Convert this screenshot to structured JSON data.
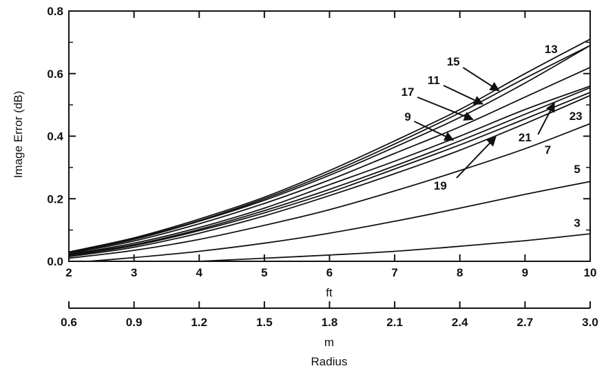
{
  "chart_data": {
    "type": "line",
    "ylabel": "Image Error (dB)",
    "ylim": [
      0,
      0.8
    ],
    "yticks": [
      "0.0",
      "0.2",
      "0.4",
      "0.6",
      "0.8"
    ],
    "x_axis_ft": {
      "label": "ft",
      "range": [
        2,
        10
      ],
      "ticks": [
        "2",
        "3",
        "4",
        "5",
        "6",
        "7",
        "8",
        "9",
        "10"
      ]
    },
    "x_axis_m": {
      "label": "m",
      "range": [
        0.6,
        3.0
      ],
      "ticks": [
        "0.6",
        "0.9",
        "1.2",
        "1.5",
        "1.8",
        "2.1",
        "2.4",
        "2.7",
        "3.0"
      ]
    },
    "xlabel": "Radius",
    "x": [
      2,
      3,
      4,
      5,
      6,
      7,
      8,
      9,
      10
    ],
    "series": [
      {
        "name": "3",
        "values": [
          -0.015,
          -0.008,
          0.0,
          0.01,
          0.02,
          0.032,
          0.048,
          0.066,
          0.088
        ]
      },
      {
        "name": "5",
        "values": [
          -0.005,
          0.012,
          0.032,
          0.058,
          0.09,
          0.128,
          0.17,
          0.214,
          0.255
        ]
      },
      {
        "name": "7",
        "values": [
          0.01,
          0.035,
          0.07,
          0.115,
          0.165,
          0.225,
          0.29,
          0.36,
          0.44
        ]
      },
      {
        "name": "9",
        "values": [
          0.022,
          0.058,
          0.108,
          0.17,
          0.245,
          0.32,
          0.4,
          0.485,
          0.56
        ]
      },
      {
        "name": "11",
        "values": [
          0.028,
          0.07,
          0.128,
          0.195,
          0.275,
          0.365,
          0.46,
          0.57,
          0.69
        ]
      },
      {
        "name": "13",
        "values": [
          0.03,
          0.075,
          0.135,
          0.205,
          0.29,
          0.385,
          0.485,
          0.6,
          0.71
        ]
      },
      {
        "name": "15",
        "values": [
          0.028,
          0.072,
          0.13,
          0.2,
          0.282,
          0.375,
          0.475,
          0.585,
          0.69
        ]
      },
      {
        "name": "17",
        "values": [
          0.025,
          0.065,
          0.12,
          0.185,
          0.26,
          0.345,
          0.43,
          0.525,
          0.62
        ]
      },
      {
        "name": "19",
        "values": [
          0.015,
          0.045,
          0.09,
          0.145,
          0.21,
          0.28,
          0.355,
          0.44,
          0.53
        ]
      },
      {
        "name": "21",
        "values": [
          0.018,
          0.05,
          0.098,
          0.155,
          0.22,
          0.295,
          0.372,
          0.455,
          0.54
        ]
      },
      {
        "name": "23",
        "values": [
          0.02,
          0.053,
          0.102,
          0.162,
          0.23,
          0.305,
          0.385,
          0.47,
          0.555
        ]
      }
    ],
    "grid": false,
    "line_color": "#111111"
  }
}
